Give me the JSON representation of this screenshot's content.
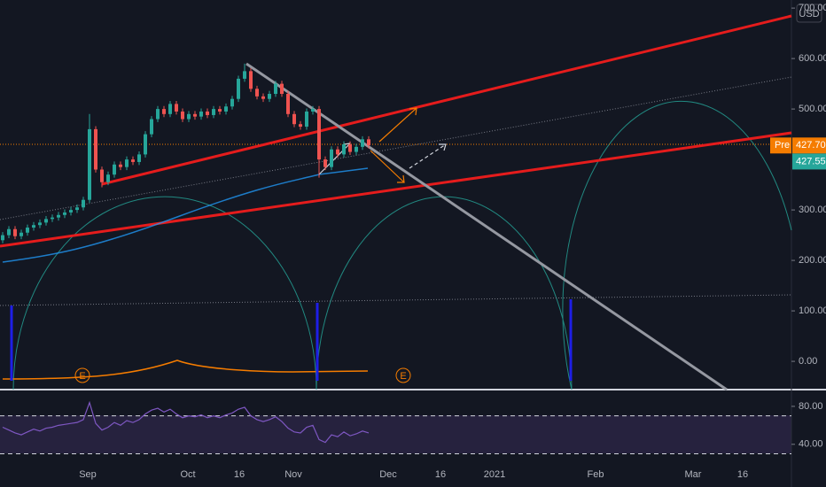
{
  "chart_data": {
    "type": "candlestick",
    "currency": "USD",
    "up_color": "#26a69a",
    "down_color": "#ef5350",
    "ylim": [
      -56,
      716
    ],
    "yticks": [
      {
        "value": 0,
        "label": "0.00"
      },
      {
        "value": 100,
        "label": "100.00"
      },
      {
        "value": 200,
        "label": "200.00"
      },
      {
        "value": 300,
        "label": "300.00"
      },
      {
        "value": 500,
        "label": "500.00"
      },
      {
        "value": 600,
        "label": "600.00"
      },
      {
        "value": 700,
        "label": "700.00"
      }
    ],
    "x_labels": [
      "Sep",
      "Oct",
      "16",
      "Nov",
      "Dec",
      "16",
      "2021",
      "Feb",
      "Mar",
      "16"
    ],
    "open": [
      240,
      250,
      262,
      248,
      255,
      265,
      270,
      275,
      282,
      285,
      290,
      295,
      300,
      305,
      320,
      460,
      380,
      355,
      370,
      390,
      385,
      400,
      395,
      410,
      450,
      480,
      500,
      490,
      510,
      495,
      480,
      490,
      485,
      495,
      488,
      500,
      495,
      505,
      520,
      560,
      575,
      540,
      525,
      520,
      530,
      550,
      530,
      490,
      470,
      465,
      495,
      500,
      400,
      385,
      420,
      410,
      430,
      415,
      425,
      440
    ],
    "high": [
      256,
      268,
      268,
      261,
      271,
      276,
      281,
      288,
      291,
      296,
      301,
      306,
      311,
      326,
      490,
      466,
      386,
      376,
      396,
      396,
      406,
      406,
      416,
      456,
      486,
      506,
      506,
      516,
      516,
      501,
      496,
      496,
      501,
      501,
      506,
      506,
      511,
      526,
      566,
      590,
      581,
      546,
      531,
      536,
      556,
      556,
      536,
      496,
      476,
      501,
      506,
      506,
      406,
      426,
      426,
      436,
      436,
      431,
      446,
      446
    ],
    "low": [
      234,
      244,
      242,
      242,
      249,
      259,
      264,
      269,
      276,
      279,
      284,
      289,
      294,
      299,
      314,
      374,
      345,
      349,
      364,
      379,
      379,
      389,
      389,
      404,
      444,
      474,
      484,
      484,
      489,
      474,
      474,
      479,
      479,
      482,
      482,
      489,
      489,
      499,
      514,
      554,
      534,
      519,
      514,
      514,
      524,
      524,
      484,
      464,
      459,
      459,
      489,
      364,
      379,
      379,
      404,
      404,
      409,
      409,
      419,
      422
    ],
    "close": [
      250,
      262,
      248,
      255,
      265,
      270,
      275,
      282,
      285,
      290,
      295,
      300,
      305,
      320,
      460,
      380,
      355,
      370,
      390,
      385,
      400,
      395,
      410,
      450,
      480,
      500,
      490,
      510,
      495,
      480,
      490,
      485,
      495,
      488,
      500,
      495,
      505,
      520,
      560,
      575,
      540,
      525,
      520,
      530,
      550,
      530,
      490,
      470,
      465,
      495,
      500,
      400,
      385,
      420,
      410,
      430,
      415,
      425,
      440,
      428
    ],
    "price_tags": [
      {
        "label": "Pre",
        "value": 427.7,
        "value_label": "427.70",
        "color": "#f57c00"
      },
      {
        "value": 427.55,
        "value_label": "427.55",
        "color": "#26a69a"
      }
    ],
    "earnings_markers": [
      "E",
      "E"
    ],
    "rsi": {
      "color": "#7e57c2",
      "ylim": [
        23,
        93
      ],
      "yticks": [
        {
          "value": 80,
          "label": "80.00"
        },
        {
          "value": 40,
          "label": "40.00"
        }
      ],
      "levels": [
        70,
        30
      ],
      "values": [
        58,
        55,
        52,
        50,
        53,
        56,
        54,
        57,
        58,
        60,
        61,
        62,
        63,
        66,
        84,
        62,
        55,
        58,
        63,
        60,
        65,
        63,
        66,
        72,
        76,
        78,
        74,
        77,
        72,
        68,
        70,
        69,
        71,
        68,
        70,
        68,
        71,
        73,
        77,
        79,
        70,
        66,
        64,
        66,
        69,
        64,
        57,
        53,
        52,
        58,
        60,
        45,
        42,
        50,
        48,
        53,
        49,
        51,
        54,
        52
      ]
    }
  }
}
